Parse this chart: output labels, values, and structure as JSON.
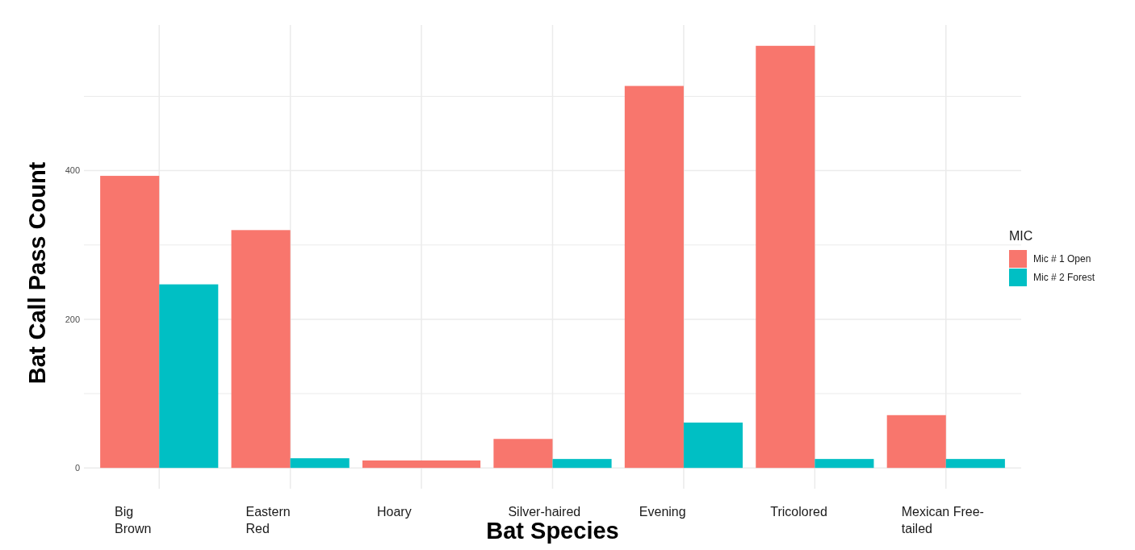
{
  "chart_data": {
    "type": "bar",
    "xlabel": "Bat Species",
    "ylabel": "Bat Call Pass Count",
    "legend_title": "MIC",
    "categories": [
      "Big\nBrown",
      "Eastern\nRed",
      "Hoary",
      "Silver-haired",
      "Evening",
      "Tricolored",
      "Mexican Free-\ntailed"
    ],
    "series": [
      {
        "name": "Mic # 1 Open",
        "color": "#f8766d",
        "values": [
          393,
          320,
          10,
          39,
          514,
          568,
          71
        ]
      },
      {
        "name": "Mic # 2 Forest",
        "color": "#00bfc4",
        "values": [
          247,
          13,
          null,
          12,
          61,
          12,
          12
        ]
      }
    ],
    "ylim": [
      -28,
      596
    ],
    "yticks": [
      0,
      {
        "value": 100,
        "label": null
      },
      200,
      {
        "value": 300,
        "label": null
      },
      400,
      {
        "value": 500,
        "label": null
      }
    ],
    "grid": true,
    "legend": "right"
  }
}
